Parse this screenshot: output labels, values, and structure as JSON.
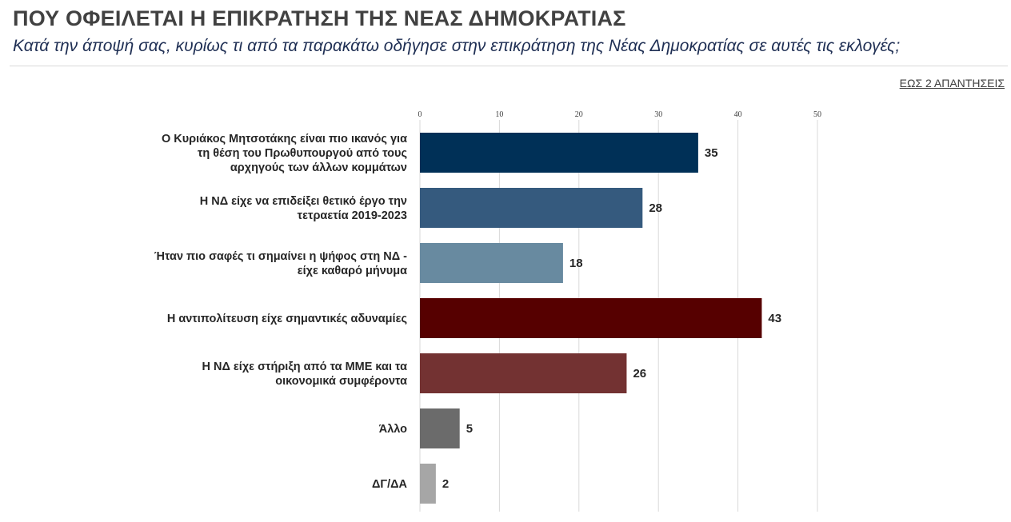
{
  "header": {
    "title": "ΠΟΥ ΟΦΕΙΛΕΤΑΙ Η ΕΠΙΚΡΑΤΗΣΗ ΤΗΣ ΝΕΑΣ ΔΗΜΟΚΡΑΤΙΑΣ",
    "subtitle": "Κατά την άποψή σας, κυρίως τι από τα παρακάτω οδήγησε στην επικράτηση της Νέας Δημοκρατίας σε αυτές τις εκλογές;",
    "note": "ΕΩΣ 2 ΑΠΑΝΤΗΣΕΙΣ"
  },
  "chart_data": {
    "type": "bar",
    "orientation": "horizontal",
    "categories": [
      [
        "Ο Κυριάκος Μητσοτάκης είναι πιο ικανός για",
        "τη θέση του Πρωθυπουργού από τους",
        "αρχηγούς των άλλων κομμάτων"
      ],
      [
        "Η ΝΔ είχε να επιδείξει θετικό έργο την",
        "τετραετία 2019-2023"
      ],
      [
        "Ήταν πιο σαφές τι σημαίνει η ψήφος στη ΝΔ -",
        "είχε καθαρό μήνυμα"
      ],
      [
        "Η αντιπολίτευση είχε σημαντικές αδυναμίες"
      ],
      [
        "Η ΝΔ είχε στήριξη από τα ΜΜΕ και τα",
        "οικονομικά συμφέροντα"
      ],
      [
        "Άλλο"
      ],
      [
        "ΔΓ/ΔΑ"
      ]
    ],
    "values": [
      35,
      28,
      18,
      43,
      26,
      5,
      2
    ],
    "colors": [
      "#003057",
      "#355a7e",
      "#688aa0",
      "#560000",
      "#733232",
      "#6b6b6b",
      "#a6a6a6"
    ],
    "xlim": [
      0,
      50
    ],
    "xticks": [
      0,
      10,
      20,
      30,
      40,
      50
    ],
    "axis_position": "top",
    "grid": true
  }
}
